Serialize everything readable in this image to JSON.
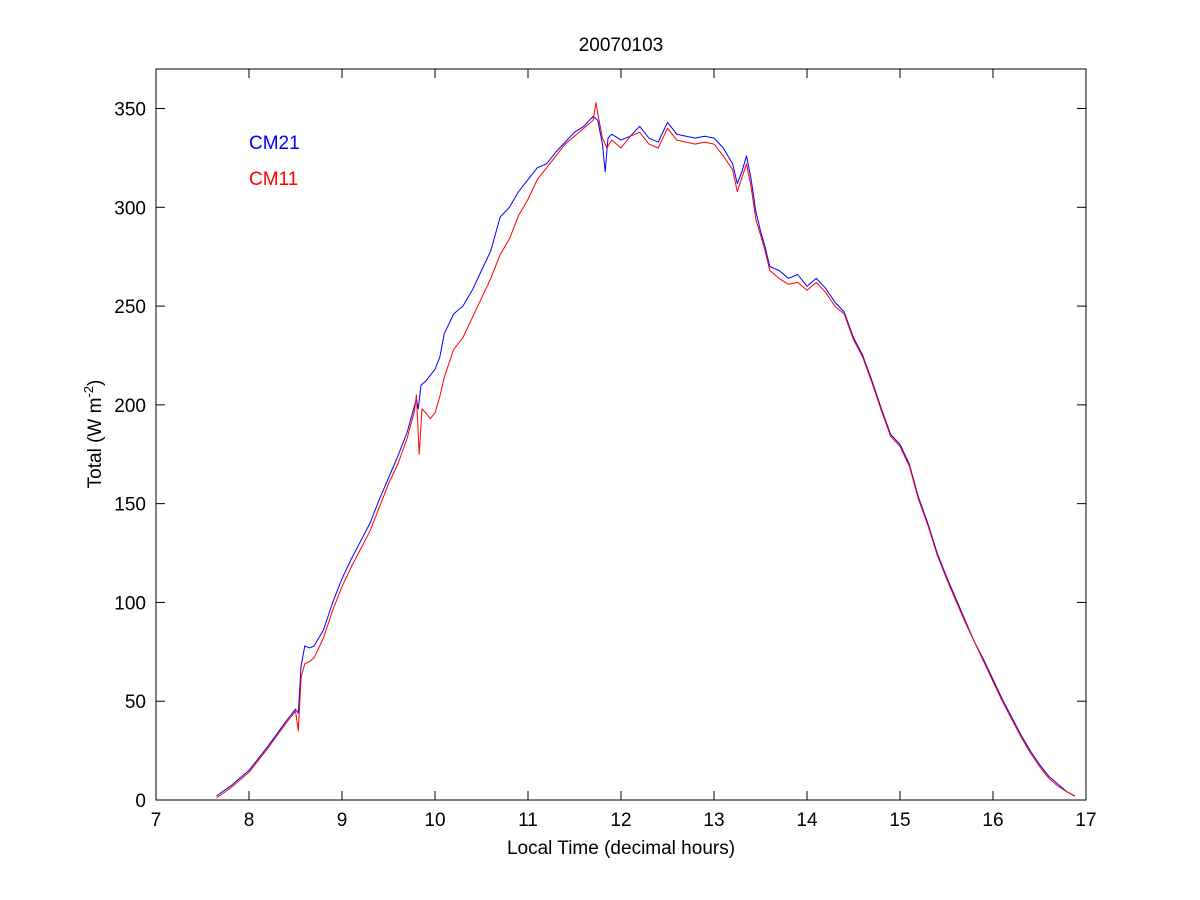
{
  "chart_data": {
    "type": "line",
    "title": "20070103",
    "xlabel": "Local Time (decimal hours)",
    "ylabel": "Total (W m",
    "ylabel_sup": "-2",
    "ylabel_close": ")",
    "xlim": [
      7,
      17
    ],
    "ylim": [
      0,
      370
    ],
    "xticks": [
      7,
      8,
      9,
      10,
      11,
      12,
      13,
      14,
      15,
      16,
      17
    ],
    "yticks": [
      0,
      50,
      100,
      150,
      200,
      250,
      300,
      350
    ],
    "grid": false,
    "legend_position": "top-left",
    "series": [
      {
        "name": "CM21",
        "color": "#0000ff",
        "points": [
          [
            7.65,
            2
          ],
          [
            7.8,
            7
          ],
          [
            8.0,
            15
          ],
          [
            8.2,
            27
          ],
          [
            8.4,
            40
          ],
          [
            8.5,
            46
          ],
          [
            8.53,
            44
          ],
          [
            8.56,
            68
          ],
          [
            8.6,
            78
          ],
          [
            8.65,
            77
          ],
          [
            8.7,
            78
          ],
          [
            8.8,
            86
          ],
          [
            8.9,
            100
          ],
          [
            9.0,
            112
          ],
          [
            9.1,
            122
          ],
          [
            9.2,
            131
          ],
          [
            9.3,
            140
          ],
          [
            9.4,
            152
          ],
          [
            9.5,
            163
          ],
          [
            9.6,
            174
          ],
          [
            9.7,
            186
          ],
          [
            9.8,
            203
          ],
          [
            9.82,
            198
          ],
          [
            9.85,
            210
          ],
          [
            9.9,
            212
          ],
          [
            10.0,
            218
          ],
          [
            10.05,
            224
          ],
          [
            10.1,
            236
          ],
          [
            10.2,
            246
          ],
          [
            10.3,
            250
          ],
          [
            10.4,
            258
          ],
          [
            10.5,
            268
          ],
          [
            10.6,
            278
          ],
          [
            10.7,
            295
          ],
          [
            10.8,
            300
          ],
          [
            10.9,
            308
          ],
          [
            11.0,
            314
          ],
          [
            11.1,
            320
          ],
          [
            11.2,
            322
          ],
          [
            11.3,
            328
          ],
          [
            11.4,
            333
          ],
          [
            11.5,
            338
          ],
          [
            11.6,
            341
          ],
          [
            11.7,
            346
          ],
          [
            11.75,
            344
          ],
          [
            11.8,
            332
          ],
          [
            11.83,
            318
          ],
          [
            11.86,
            335
          ],
          [
            11.9,
            337
          ],
          [
            12.0,
            334
          ],
          [
            12.1,
            336
          ],
          [
            12.2,
            341
          ],
          [
            12.3,
            335
          ],
          [
            12.4,
            333
          ],
          [
            12.5,
            343
          ],
          [
            12.6,
            337
          ],
          [
            12.7,
            336
          ],
          [
            12.8,
            335
          ],
          [
            12.9,
            336
          ],
          [
            13.0,
            335
          ],
          [
            13.1,
            330
          ],
          [
            13.2,
            322
          ],
          [
            13.25,
            312
          ],
          [
            13.3,
            318
          ],
          [
            13.35,
            326
          ],
          [
            13.4,
            314
          ],
          [
            13.45,
            298
          ],
          [
            13.5,
            288
          ],
          [
            13.55,
            280
          ],
          [
            13.6,
            270
          ],
          [
            13.7,
            268
          ],
          [
            13.8,
            264
          ],
          [
            13.9,
            266
          ],
          [
            14.0,
            260
          ],
          [
            14.1,
            264
          ],
          [
            14.2,
            259
          ],
          [
            14.3,
            252
          ],
          [
            14.4,
            247
          ],
          [
            14.5,
            234
          ],
          [
            14.6,
            225
          ],
          [
            14.7,
            212
          ],
          [
            14.8,
            198
          ],
          [
            14.9,
            185
          ],
          [
            15.0,
            180
          ],
          [
            15.1,
            170
          ],
          [
            15.2,
            153
          ],
          [
            15.3,
            140
          ],
          [
            15.4,
            125
          ],
          [
            15.5,
            113
          ],
          [
            15.6,
            102
          ],
          [
            15.7,
            91
          ],
          [
            15.8,
            80
          ],
          [
            15.9,
            71
          ],
          [
            16.0,
            61
          ],
          [
            16.1,
            51
          ],
          [
            16.2,
            42
          ],
          [
            16.3,
            33
          ],
          [
            16.4,
            25
          ],
          [
            16.5,
            18
          ],
          [
            16.6,
            12
          ],
          [
            16.7,
            8
          ],
          [
            16.8,
            4
          ],
          [
            16.88,
            2
          ]
        ]
      },
      {
        "name": "CM11",
        "color": "#ff0000",
        "points": [
          [
            7.65,
            1
          ],
          [
            7.8,
            6
          ],
          [
            8.0,
            14
          ],
          [
            8.2,
            26
          ],
          [
            8.4,
            39
          ],
          [
            8.5,
            45
          ],
          [
            8.53,
            35
          ],
          [
            8.56,
            62
          ],
          [
            8.6,
            69
          ],
          [
            8.65,
            70
          ],
          [
            8.7,
            72
          ],
          [
            8.8,
            82
          ],
          [
            8.9,
            96
          ],
          [
            9.0,
            108
          ],
          [
            9.1,
            118
          ],
          [
            9.2,
            127
          ],
          [
            9.3,
            136
          ],
          [
            9.4,
            148
          ],
          [
            9.5,
            160
          ],
          [
            9.6,
            170
          ],
          [
            9.7,
            183
          ],
          [
            9.78,
            197
          ],
          [
            9.8,
            205
          ],
          [
            9.83,
            175
          ],
          [
            9.86,
            198
          ],
          [
            9.9,
            196
          ],
          [
            9.95,
            193
          ],
          [
            10.0,
            196
          ],
          [
            10.05,
            204
          ],
          [
            10.1,
            214
          ],
          [
            10.2,
            228
          ],
          [
            10.3,
            234
          ],
          [
            10.4,
            244
          ],
          [
            10.5,
            254
          ],
          [
            10.6,
            264
          ],
          [
            10.7,
            276
          ],
          [
            10.8,
            284
          ],
          [
            10.9,
            296
          ],
          [
            11.0,
            304
          ],
          [
            11.1,
            314
          ],
          [
            11.2,
            320
          ],
          [
            11.3,
            326
          ],
          [
            11.4,
            332
          ],
          [
            11.5,
            336
          ],
          [
            11.6,
            340
          ],
          [
            11.7,
            344
          ],
          [
            11.73,
            353
          ],
          [
            11.76,
            345
          ],
          [
            11.8,
            335
          ],
          [
            11.85,
            330
          ],
          [
            11.9,
            334
          ],
          [
            12.0,
            330
          ],
          [
            12.1,
            336
          ],
          [
            12.2,
            338
          ],
          [
            12.3,
            332
          ],
          [
            12.4,
            330
          ],
          [
            12.5,
            340
          ],
          [
            12.6,
            334
          ],
          [
            12.7,
            333
          ],
          [
            12.8,
            332
          ],
          [
            12.9,
            333
          ],
          [
            13.0,
            332
          ],
          [
            13.1,
            326
          ],
          [
            13.2,
            319
          ],
          [
            13.25,
            308
          ],
          [
            13.3,
            315
          ],
          [
            13.35,
            322
          ],
          [
            13.4,
            310
          ],
          [
            13.45,
            294
          ],
          [
            13.5,
            286
          ],
          [
            13.55,
            278
          ],
          [
            13.6,
            268
          ],
          [
            13.7,
            264
          ],
          [
            13.8,
            261
          ],
          [
            13.9,
            262
          ],
          [
            14.0,
            258
          ],
          [
            14.1,
            262
          ],
          [
            14.2,
            257
          ],
          [
            14.3,
            250
          ],
          [
            14.4,
            246
          ],
          [
            14.5,
            233
          ],
          [
            14.6,
            224
          ],
          [
            14.7,
            211
          ],
          [
            14.8,
            197
          ],
          [
            14.9,
            184
          ],
          [
            15.0,
            179
          ],
          [
            15.1,
            169
          ],
          [
            15.2,
            152
          ],
          [
            15.3,
            139
          ],
          [
            15.4,
            124
          ],
          [
            15.5,
            112
          ],
          [
            15.6,
            101
          ],
          [
            15.7,
            90
          ],
          [
            15.8,
            80
          ],
          [
            15.9,
            70
          ],
          [
            16.0,
            60
          ],
          [
            16.1,
            50
          ],
          [
            16.2,
            41
          ],
          [
            16.3,
            32
          ],
          [
            16.4,
            24
          ],
          [
            16.5,
            17
          ],
          [
            16.6,
            11
          ],
          [
            16.7,
            7
          ],
          [
            16.8,
            4
          ],
          [
            16.88,
            2
          ]
        ]
      }
    ]
  }
}
